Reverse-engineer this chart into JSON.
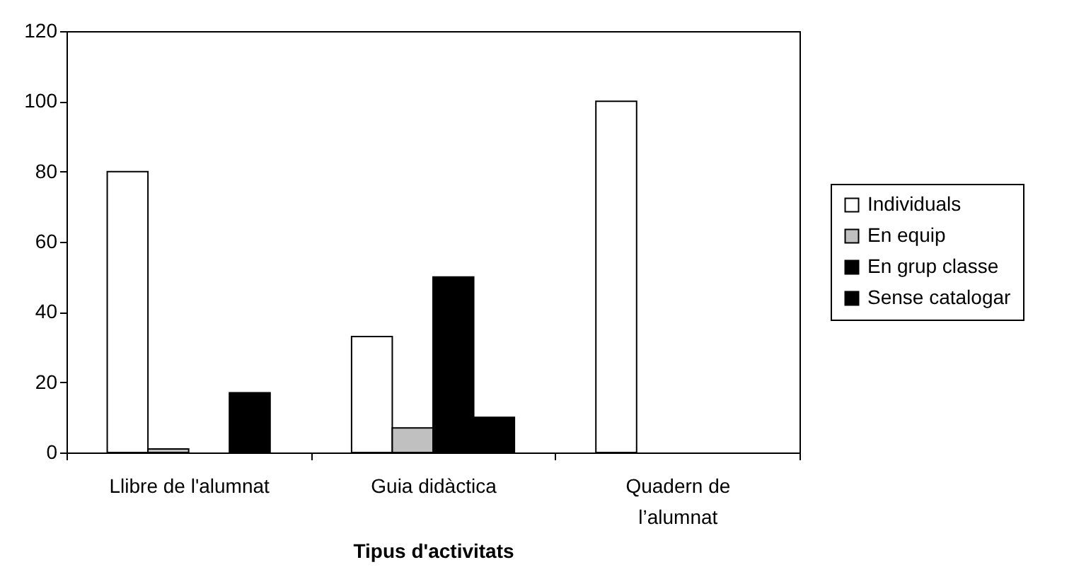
{
  "chart_data": {
    "type": "bar",
    "xlabel": "Tipus d'activitats",
    "categories": [
      "Llibre de l'alumnat",
      "Guia didàctica",
      "Quadern de l’alumnat"
    ],
    "series": [
      {
        "name": "Individuals",
        "color": "#ffffff",
        "values": [
          80,
          33,
          100
        ]
      },
      {
        "name": "En equip",
        "color": "#c0c0c0",
        "values": [
          1,
          7,
          0
        ]
      },
      {
        "name": "En grup classe",
        "color": "#000000",
        "values": [
          0,
          50,
          0
        ]
      },
      {
        "name": "Sense catalogar",
        "color": "#000000",
        "values": [
          17,
          10,
          0
        ]
      }
    ],
    "ylim": [
      0,
      120
    ],
    "yticks": [
      0,
      20,
      40,
      60,
      80,
      100,
      120
    ],
    "grid": false,
    "legend": "right"
  }
}
